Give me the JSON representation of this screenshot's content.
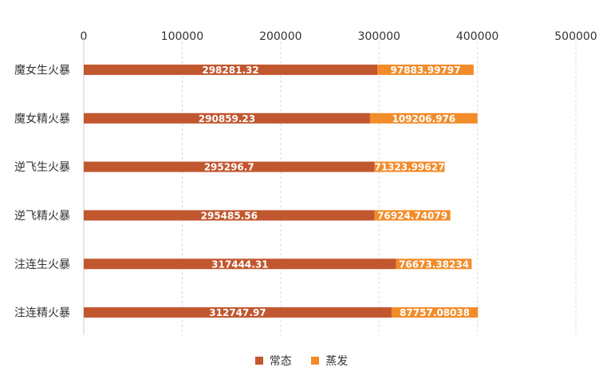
{
  "chart_data": {
    "type": "bar",
    "orientation": "horizontal",
    "stacked": true,
    "categories": [
      "魔女生火暴",
      "魔女精火暴",
      "逆飞生火暴",
      "逆飞精火暴",
      "注连生火暴",
      "注连精火暴"
    ],
    "series": [
      {
        "name": "常态",
        "color": "#c1572f",
        "values": [
          298281.32,
          290859.23,
          295296.7,
          295485.56,
          317444.31,
          312747.97
        ],
        "labels": [
          "298281.32",
          "290859.23",
          "295296.7",
          "295485.56",
          "317444.31",
          "312747.97"
        ]
      },
      {
        "name": "蒸发",
        "color": "#f28c2a",
        "values": [
          97883.99797,
          109206.976,
          71323.99627,
          76924.74079,
          76673.38234,
          87757.08038
        ],
        "labels": [
          "97883.99797",
          "109206.976",
          "71323.99627",
          "76924.74079",
          "76673.38234",
          "87757.08038"
        ]
      }
    ],
    "xlim": [
      0,
      500000
    ],
    "ticks": [
      "0",
      "100000",
      "200000",
      "300000",
      "400000",
      "500000"
    ],
    "grid": true,
    "legend_position": "bottom"
  }
}
